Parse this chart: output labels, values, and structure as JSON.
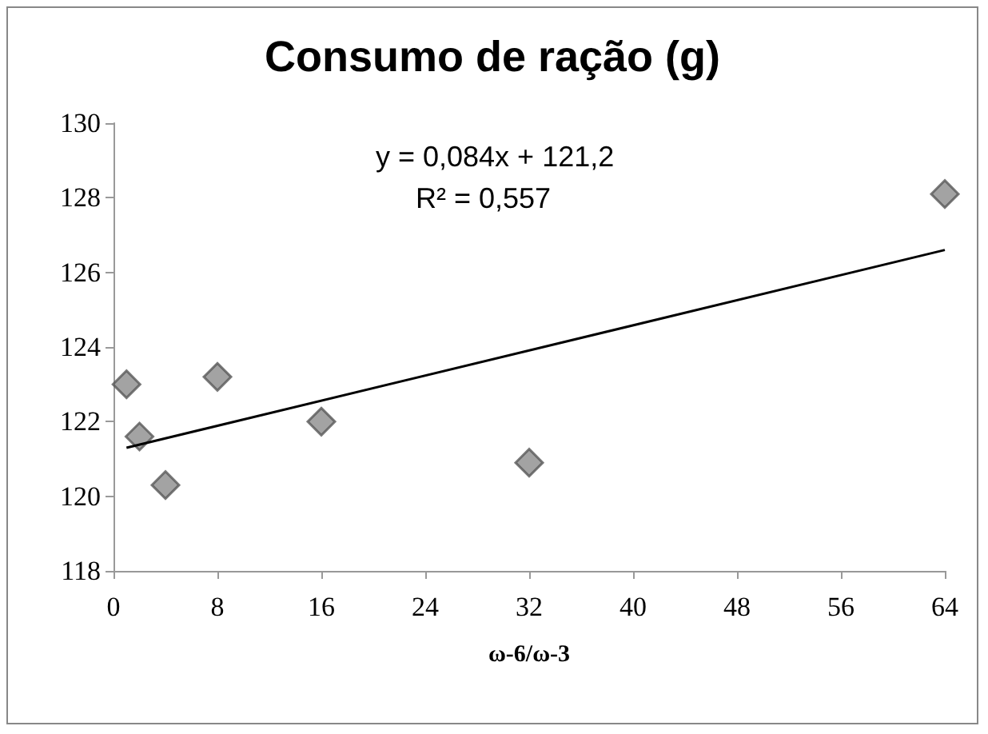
{
  "chart_data": {
    "type": "scatter",
    "title": "Consumo de ração (g)",
    "xlabel": "ω-6/ω-3",
    "series": [
      {
        "color": "#8c8c8c",
        "x": [
          1,
          2,
          4,
          8,
          16,
          32,
          64
        ],
        "values": [
          123.0,
          121.6,
          120.3,
          123.2,
          122.0,
          120.9,
          128.1
        ]
      },
      {
        "type": "line",
        "marker": "none",
        "color": "#000000",
        "x": [
          1,
          64
        ],
        "values": [
          121.3,
          126.6
        ]
      }
    ],
    "annotations": [
      "y = 0,084x + 121,2",
      "R² = 0,557"
    ],
    "xlim": [
      0,
      64
    ],
    "xticks": [
      0,
      8,
      16,
      24,
      32,
      40,
      48,
      56,
      64
    ],
    "ylim": [
      118,
      130
    ],
    "yticks": [
      118,
      120,
      122,
      124,
      126,
      128,
      130
    ],
    "grid": false,
    "marker": "diamond"
  }
}
